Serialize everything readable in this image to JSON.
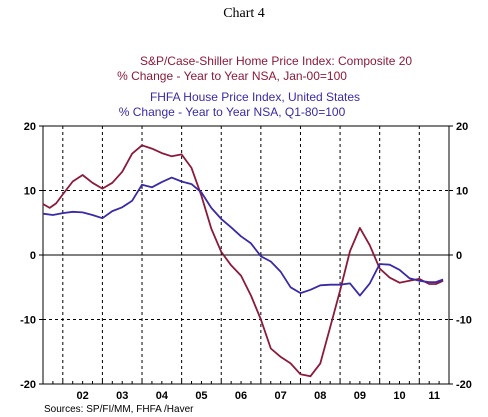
{
  "chart_data": {
    "type": "line",
    "title": "Chart 4",
    "legend_placement": "top",
    "grid": true,
    "x_tick_labels": [
      "02",
      "03",
      "04",
      "05",
      "06",
      "07",
      "08",
      "09",
      "10",
      "11"
    ],
    "x_range": [
      2001.5,
      2011.75
    ],
    "ylim": [
      -20,
      20
    ],
    "y_ticks": [
      20,
      10,
      0,
      -10,
      -20
    ],
    "series": [
      {
        "name": "S&P/Case-Shiller Home Price Index: Composite 20",
        "subtitle": "% Change - Year to Year    NSA, Jan-00=100",
        "color": "#8b1a3a",
        "x": [
          2001.5,
          2001.67,
          2001.83,
          2002.0,
          2002.25,
          2002.5,
          2002.75,
          2003.0,
          2003.25,
          2003.5,
          2003.75,
          2004.0,
          2004.25,
          2004.5,
          2004.75,
          2005.0,
          2005.25,
          2005.5,
          2005.75,
          2006.0,
          2006.25,
          2006.5,
          2006.75,
          2007.0,
          2007.25,
          2007.5,
          2007.75,
          2008.0,
          2008.25,
          2008.5,
          2008.75,
          2009.0,
          2009.25,
          2009.5,
          2009.75,
          2010.0,
          2010.25,
          2010.5,
          2010.75,
          2011.0,
          2011.25,
          2011.42,
          2011.6
        ],
        "values": [
          7.9,
          7.3,
          8.0,
          9.4,
          11.4,
          12.4,
          11.2,
          10.3,
          11.2,
          12.9,
          15.7,
          17.0,
          16.5,
          15.8,
          15.3,
          15.6,
          13.5,
          9.2,
          4.1,
          0.5,
          -1.6,
          -3.2,
          -6.3,
          -10.0,
          -14.5,
          -15.8,
          -16.8,
          -18.5,
          -18.8,
          -16.8,
          -11.2,
          -5.5,
          0.6,
          4.2,
          1.5,
          -2.1,
          -3.5,
          -4.3,
          -4.0,
          -3.7,
          -4.5,
          -4.5,
          -4.0
        ]
      },
      {
        "name": "FHFA House Price Index, United States",
        "subtitle": "% Change - Year to Year    NSA, Q1-80=100",
        "color": "#3a2aa5",
        "x": [
          2001.5,
          2001.75,
          2002.0,
          2002.25,
          2002.5,
          2002.75,
          2003.0,
          2003.25,
          2003.5,
          2003.75,
          2004.0,
          2004.25,
          2004.5,
          2004.75,
          2005.0,
          2005.25,
          2005.5,
          2005.75,
          2006.0,
          2006.25,
          2006.5,
          2006.75,
          2007.0,
          2007.25,
          2007.5,
          2007.75,
          2008.0,
          2008.25,
          2008.5,
          2008.75,
          2009.0,
          2009.25,
          2009.5,
          2009.75,
          2010.0,
          2010.25,
          2010.5,
          2010.75,
          2011.0,
          2011.25,
          2011.42,
          2011.6
        ],
        "values": [
          6.4,
          6.2,
          6.5,
          6.7,
          6.6,
          6.2,
          5.7,
          6.8,
          7.4,
          8.4,
          10.9,
          10.5,
          11.3,
          12.0,
          11.4,
          11.0,
          9.7,
          7.3,
          5.6,
          4.3,
          2.9,
          1.8,
          -0.2,
          -1.0,
          -2.6,
          -5.0,
          -5.9,
          -5.4,
          -4.7,
          -4.6,
          -4.6,
          -4.4,
          -6.3,
          -4.4,
          -1.4,
          -1.5,
          -2.3,
          -3.6,
          -4.0,
          -4.2,
          -4.2,
          -3.8
        ]
      }
    ],
    "source_note": "Sources:  SP/FI/MM, FHFA /Haver"
  }
}
